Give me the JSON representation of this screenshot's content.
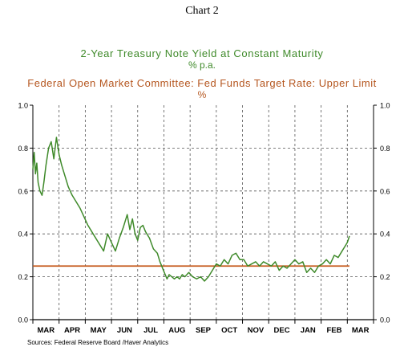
{
  "chart_number": "Chart 2",
  "titles": {
    "series1_title": "2-Year Treasury Note Yield at Constant Maturity",
    "series1_unit": "% p.a.",
    "series2_title": "Federal Open Market Committee: Fed Funds Target Rate: Upper Limit",
    "series2_unit": "%"
  },
  "sources": "Sources:  Federal Reserve Board /Haver Analytics",
  "colors": {
    "treasury": "#3f8a2a",
    "fed_funds": "#c55a1d",
    "axis": "#000000",
    "grid": "#555555"
  },
  "chart_data": {
    "type": "line",
    "categories": [
      "MAR",
      "APR",
      "MAY",
      "JUN",
      "JUL",
      "AUG",
      "SEP",
      "OCT",
      "NOV",
      "DEC",
      "JAN",
      "FEB",
      "MAR"
    ],
    "ylim": [
      0.0,
      1.0
    ],
    "yticks_left": [
      "0.0",
      "0.2",
      "0.4",
      "0.6",
      "0.8",
      "1.0"
    ],
    "yticks_right": [
      "0.0",
      "0.2",
      "0.4",
      "0.6",
      "0.8",
      "1.0"
    ],
    "grid": true,
    "series": [
      {
        "name": "2-Year Treasury Note Yield at Constant Maturity",
        "x": [
          0.0,
          0.05,
          0.1,
          0.15,
          0.2,
          0.27,
          0.35,
          0.42,
          0.5,
          0.6,
          0.7,
          0.8,
          0.9,
          1.0,
          1.1,
          1.2,
          1.35,
          1.5,
          1.65,
          1.8,
          1.95,
          2.1,
          2.3,
          2.5,
          2.7,
          2.85,
          3.0,
          3.15,
          3.3,
          3.45,
          3.6,
          3.7,
          3.8,
          3.9,
          4.0,
          4.1,
          4.2,
          4.3,
          4.45,
          4.6,
          4.75,
          4.85,
          4.95,
          5.05,
          5.12,
          5.2,
          5.3,
          5.4,
          5.5,
          5.6,
          5.7,
          5.8,
          5.95,
          6.1,
          6.25,
          6.4,
          6.55,
          6.7,
          6.85,
          7.0,
          7.15,
          7.3,
          7.45,
          7.6,
          7.75,
          7.9,
          8.05,
          8.2,
          8.35,
          8.5,
          8.65,
          8.8,
          8.95,
          9.1,
          9.25,
          9.4,
          9.55,
          9.7,
          9.85,
          10.0,
          10.15,
          10.3,
          10.45,
          10.6,
          10.75,
          10.9,
          11.05,
          11.2,
          11.35,
          11.5,
          11.65,
          11.8,
          11.9,
          12.0,
          12.08
        ],
        "values": [
          0.7,
          0.78,
          0.68,
          0.73,
          0.64,
          0.6,
          0.58,
          0.64,
          0.72,
          0.8,
          0.83,
          0.75,
          0.85,
          0.77,
          0.72,
          0.68,
          0.62,
          0.58,
          0.55,
          0.52,
          0.48,
          0.44,
          0.4,
          0.36,
          0.32,
          0.4,
          0.36,
          0.32,
          0.38,
          0.43,
          0.49,
          0.42,
          0.47,
          0.4,
          0.37,
          0.43,
          0.44,
          0.41,
          0.38,
          0.33,
          0.31,
          0.27,
          0.24,
          0.21,
          0.19,
          0.21,
          0.2,
          0.19,
          0.2,
          0.19,
          0.21,
          0.2,
          0.22,
          0.2,
          0.19,
          0.2,
          0.18,
          0.2,
          0.23,
          0.26,
          0.25,
          0.28,
          0.26,
          0.3,
          0.31,
          0.28,
          0.28,
          0.25,
          0.26,
          0.27,
          0.25,
          0.27,
          0.26,
          0.25,
          0.27,
          0.23,
          0.25,
          0.24,
          0.26,
          0.28,
          0.26,
          0.27,
          0.22,
          0.24,
          0.22,
          0.25,
          0.26,
          0.28,
          0.26,
          0.3,
          0.29,
          0.32,
          0.34,
          0.36,
          0.39
        ]
      },
      {
        "name": "Federal Open Market Committee: Fed Funds Target Rate: Upper Limit",
        "x": [
          0.0,
          12.08
        ],
        "values": [
          0.25,
          0.25
        ]
      }
    ]
  }
}
